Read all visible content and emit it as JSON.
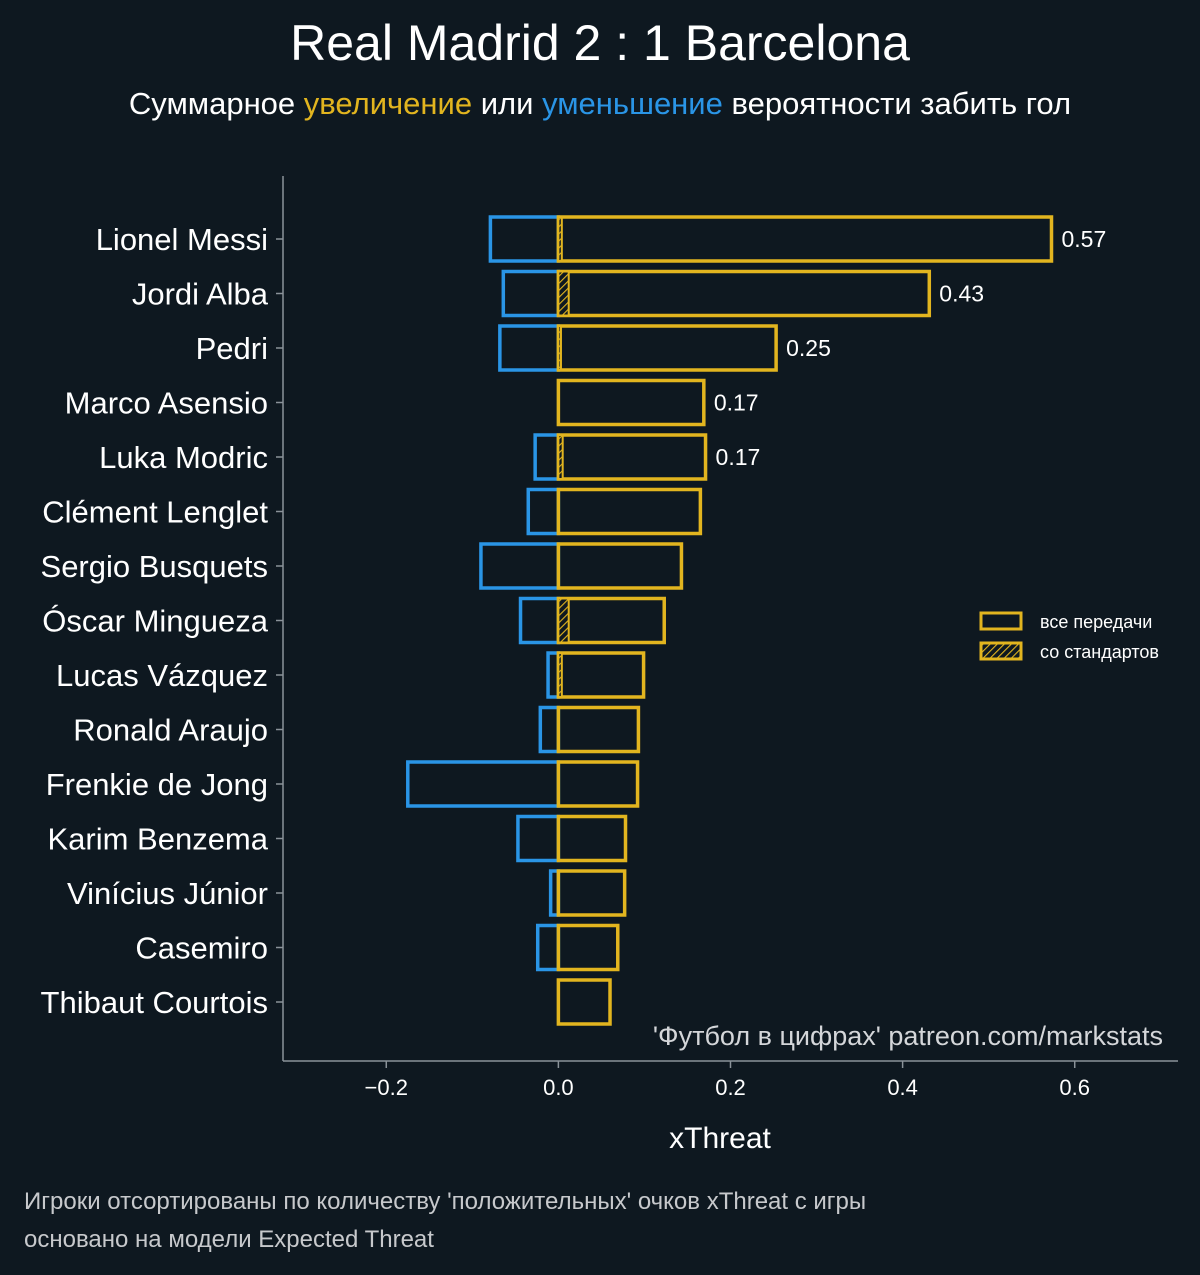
{
  "title": "Real Madrid 2 : 1 Barcelona",
  "subtitle": {
    "prefix": "Суммарное",
    "positive_word": "увеличение",
    "middle": "или",
    "negative_word": "уменьшение",
    "suffix": "вероятности забить гол"
  },
  "colors": {
    "background": "#0e1820",
    "positive": "#e2b51f",
    "negative": "#2a95e6",
    "axis": "#8a9299",
    "text": "#ffffff"
  },
  "legend": {
    "all_passes": "все передачи",
    "set_pieces": "со стандартов"
  },
  "watermark": "'Футбол в цифрах' patreon.com/markstats",
  "footnotes": {
    "line1": "Игроки отсортированы по количеству 'положительных' очков xThreat с игры",
    "line2": "основано на модели Expected Threat"
  },
  "chart_data": {
    "type": "bar",
    "orientation": "horizontal",
    "xlabel": "xThreat",
    "xlim": [
      -0.32,
      0.72
    ],
    "xticks": [
      -0.2,
      0.0,
      0.2,
      0.4,
      0.6
    ],
    "xtick_labels": [
      "−0.2",
      "0.0",
      "0.2",
      "0.4",
      "0.6"
    ],
    "categories": [
      "Lionel Messi",
      "Jordi Alba",
      "Pedri",
      "Marco Asensio",
      "Luka Modric",
      "Clément Lenglet",
      "Sergio Busquets",
      "Óscar Mingueza",
      "Lucas Vázquez",
      "Ronald Araujo",
      "Frenkie de Jong",
      "Karim Benzema",
      "Vinícius Júnior",
      "Casemiro",
      "Thibaut Courtois"
    ],
    "series": [
      {
        "name": "positive",
        "values": [
          0.573,
          0.431,
          0.253,
          0.169,
          0.171,
          0.165,
          0.143,
          0.123,
          0.099,
          0.093,
          0.092,
          0.078,
          0.077,
          0.069,
          0.06
        ]
      },
      {
        "name": "negative",
        "values": [
          -0.079,
          -0.064,
          -0.068,
          0.0,
          -0.027,
          -0.035,
          -0.09,
          -0.044,
          -0.012,
          -0.021,
          -0.175,
          -0.047,
          -0.009,
          -0.024,
          0.0
        ]
      },
      {
        "name": "positive_set_pieces",
        "values": [
          0.004,
          0.012,
          0.003,
          0.0,
          0.005,
          0.0,
          0.0,
          0.012,
          0.004,
          0.0,
          0.0,
          0.0,
          0.0,
          0.0,
          0.0
        ]
      }
    ],
    "data_labels": [
      "0.57",
      "0.43",
      "0.25",
      "0.17",
      "0.17",
      null,
      null,
      null,
      null,
      null,
      null,
      null,
      null,
      null,
      null
    ]
  }
}
